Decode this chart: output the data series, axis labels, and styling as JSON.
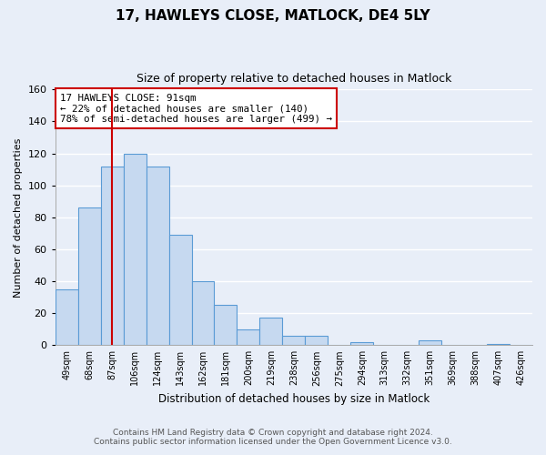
{
  "title": "17, HAWLEYS CLOSE, MATLOCK, DE4 5LY",
  "subtitle": "Size of property relative to detached houses in Matlock",
  "xlabel": "Distribution of detached houses by size in Matlock",
  "ylabel": "Number of detached properties",
  "bar_labels": [
    "49sqm",
    "68sqm",
    "87sqm",
    "106sqm",
    "124sqm",
    "143sqm",
    "162sqm",
    "181sqm",
    "200sqm",
    "219sqm",
    "238sqm",
    "256sqm",
    "275sqm",
    "294sqm",
    "313sqm",
    "332sqm",
    "351sqm",
    "369sqm",
    "388sqm",
    "407sqm",
    "426sqm"
  ],
  "bar_values": [
    35,
    86,
    112,
    120,
    112,
    69,
    40,
    25,
    10,
    17,
    6,
    6,
    0,
    2,
    0,
    0,
    3,
    0,
    0,
    1,
    0
  ],
  "bar_color": "#c6d9f0",
  "bar_edge_color": "#5a9bd5",
  "vline_x_index": 2,
  "vline_color": "#cc0000",
  "annotation_line1": "17 HAWLEYS CLOSE: 91sqm",
  "annotation_line2": "← 22% of detached houses are smaller (140)",
  "annotation_line3": "78% of semi-detached houses are larger (499) →",
  "annotation_box_edge": "#cc0000",
  "ylim": [
    0,
    160
  ],
  "yticks": [
    0,
    20,
    40,
    60,
    80,
    100,
    120,
    140,
    160
  ],
  "footer_line1": "Contains HM Land Registry data © Crown copyright and database right 2024.",
  "footer_line2": "Contains public sector information licensed under the Open Government Licence v3.0.",
  "bg_color": "#e8eef8",
  "grid_color": "#ffffff",
  "title_fontsize": 11,
  "subtitle_fontsize": 9,
  "tick_fontsize": 7,
  "ylabel_fontsize": 8,
  "xlabel_fontsize": 8.5
}
